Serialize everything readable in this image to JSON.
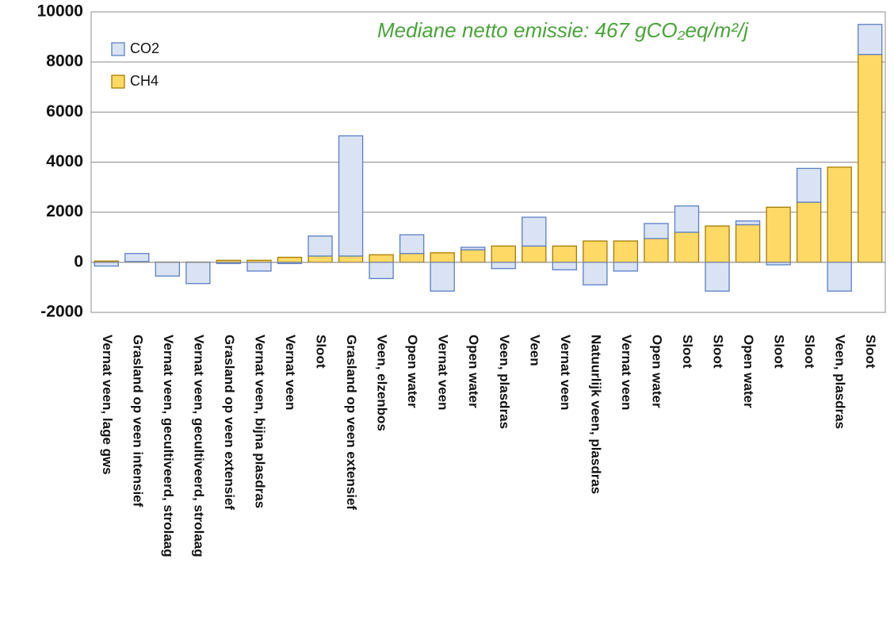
{
  "chart_data": {
    "type": "bar",
    "stacked": true,
    "annotation": "Mediane netto emissie: 467 gCO₂eq/m²/j",
    "categories": [
      "Vernat veen, lage gws",
      "Grasland op veen intensief",
      "Vernat veen, gecultiveerd, strolaag",
      "Vernat veen, gecultiveerd, strolaag",
      "Grasland op veen extensief",
      "Vernat veen, bijna plasdras",
      "Vernat veen",
      "Sloot",
      "Grasland op veen extensief",
      "Veen, elzenbos",
      "Open water",
      "Vernat veen",
      "Open water",
      "Veen, plasdras",
      "Veen",
      "Vernat veen",
      "Natuurlijk veen, plasdras",
      "Vernat veen",
      "Open water",
      "Sloot",
      "Sloot",
      "Open water",
      "Sloot",
      "Sloot",
      "Veen, plasdras",
      "Sloot"
    ],
    "series": [
      {
        "name": "CO2",
        "color": "#dae3f3",
        "edge": "#5b7fc4",
        "values": [
          -150,
          320,
          -550,
          -850,
          -50,
          -350,
          -50,
          800,
          4800,
          -650,
          750,
          -1150,
          100,
          -250,
          1150,
          -300,
          -900,
          -350,
          600,
          1050,
          -1150,
          150,
          -100,
          1350,
          -1150,
          1200
        ]
      },
      {
        "name": "CH4",
        "color": "#ffd966",
        "edge": "#a67c00",
        "values": [
          50,
          30,
          10,
          10,
          80,
          80,
          200,
          250,
          250,
          300,
          350,
          380,
          500,
          650,
          650,
          650,
          850,
          850,
          950,
          1200,
          1450,
          1500,
          2200,
          2400,
          3800,
          8300
        ]
      }
    ],
    "ylim": [
      -2000,
      10000
    ],
    "yticks": [
      -2000,
      0,
      2000,
      4000,
      6000,
      8000,
      10000
    ],
    "grid": true,
    "legend": "upper left"
  }
}
